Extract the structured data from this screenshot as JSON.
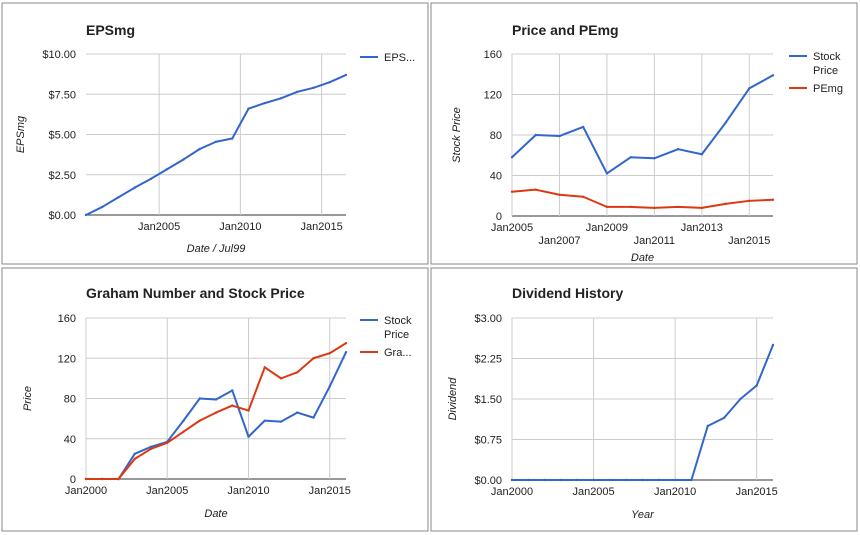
{
  "colors": {
    "stock": "#3366cc",
    "second": "#dc3912",
    "grid": "#cccccc",
    "border": "#888888",
    "text": "#222222"
  },
  "chart_data": [
    {
      "type": "line",
      "title": "EPSmg",
      "xlabel": "Date / Jul99",
      "ylabel": "EPSmg",
      "grid": true,
      "legend": "right",
      "xlim": [
        2000.5,
        2016.5
      ],
      "ylim": [
        0,
        10
      ],
      "xticks": [
        2005,
        2010,
        2015
      ],
      "xtick_labels": [
        "Jan2005",
        "Jan2010",
        "Jan2015"
      ],
      "yticks": [
        0,
        2.5,
        5,
        7.5,
        10
      ],
      "ytick_labels": [
        "$0.00",
        "$2.50",
        "$5.00",
        "$7.50",
        "$10.00"
      ],
      "x": [
        2000.5,
        2001.5,
        2002.5,
        2003.5,
        2004.5,
        2005.5,
        2006.5,
        2007.5,
        2008.5,
        2009.5,
        2010.5,
        2011.5,
        2012.5,
        2013.5,
        2014.5,
        2015.5,
        2016.5
      ],
      "series": [
        {
          "name": "EPS...",
          "color": "#3366cc",
          "values": [
            0,
            0.5,
            1.1,
            1.7,
            2.25,
            2.85,
            3.45,
            4.1,
            4.55,
            4.75,
            6.6,
            6.95,
            7.25,
            7.65,
            7.9,
            8.25,
            8.7
          ]
        }
      ]
    },
    {
      "type": "line",
      "title": "Price and PEmg",
      "xlabel": "Date",
      "ylabel": "Stock Price",
      "grid": true,
      "legend": "right",
      "xlim": [
        2005,
        2016
      ],
      "ylim": [
        0,
        160
      ],
      "xticks": [
        2005,
        2007,
        2009,
        2011,
        2013,
        2015
      ],
      "xtick_labels": [
        "Jan2005",
        "Jan2007",
        "Jan2009",
        "Jan2011",
        "Jan2013",
        "Jan2015"
      ],
      "yticks": [
        0,
        40,
        80,
        120,
        160
      ],
      "ytick_labels": [
        "0",
        "40",
        "80",
        "120",
        "160"
      ],
      "x": [
        2005,
        2006,
        2007,
        2008,
        2009,
        2010,
        2011,
        2012,
        2013,
        2014,
        2015,
        2016
      ],
      "series": [
        {
          "name": "Stock Price",
          "color": "#3366cc",
          "values": [
            58,
            80,
            79,
            88,
            42,
            58,
            57,
            66,
            61,
            92,
            126,
            139
          ]
        },
        {
          "name": "PEmg",
          "color": "#dc3912",
          "values": [
            24,
            26,
            21,
            19,
            9,
            9,
            8,
            9,
            8,
            12,
            15,
            16
          ]
        }
      ]
    },
    {
      "type": "line",
      "title": "Graham Number and Stock Price",
      "xlabel": "Date",
      "ylabel": "Price",
      "grid": true,
      "legend": "right",
      "xlim": [
        2000,
        2016
      ],
      "ylim": [
        0,
        160
      ],
      "xticks": [
        2000,
        2005,
        2010,
        2015
      ],
      "xtick_labels": [
        "Jan2000",
        "Jan2005",
        "Jan2010",
        "Jan2015"
      ],
      "yticks": [
        0,
        40,
        80,
        120,
        160
      ],
      "ytick_labels": [
        "0",
        "40",
        "80",
        "120",
        "160"
      ],
      "x": [
        2000,
        2001,
        2002,
        2003,
        2004,
        2005,
        2006,
        2007,
        2008,
        2009,
        2010,
        2011,
        2012,
        2013,
        2014,
        2015,
        2016
      ],
      "series": [
        {
          "name": "Stock Price",
          "color": "#3366cc",
          "values": [
            0,
            0,
            0,
            25,
            32,
            37,
            58,
            80,
            79,
            88,
            42,
            58,
            57,
            66,
            61,
            92,
            126
          ]
        },
        {
          "name": "Gra...",
          "color": "#dc3912",
          "values": [
            0,
            0,
            0,
            20,
            30,
            36,
            47,
            58,
            66,
            73,
            68,
            111,
            100,
            106,
            120,
            125,
            135
          ]
        }
      ]
    },
    {
      "type": "line",
      "title": "Dividend History",
      "xlabel": "Year",
      "ylabel": "Dividend",
      "grid": true,
      "legend": "none",
      "xlim": [
        2000,
        2016
      ],
      "ylim": [
        0,
        3
      ],
      "xticks": [
        2000,
        2005,
        2010,
        2015
      ],
      "xtick_labels": [
        "Jan2000",
        "Jan2005",
        "Jan2010",
        "Jan2015"
      ],
      "yticks": [
        0,
        0.75,
        1.5,
        2.25,
        3
      ],
      "ytick_labels": [
        "$0.00",
        "$0.75",
        "$1.50",
        "$2.25",
        "$3.00"
      ],
      "x": [
        2000,
        2001,
        2002,
        2003,
        2004,
        2005,
        2006,
        2007,
        2008,
        2009,
        2010,
        2011,
        2012,
        2013,
        2014,
        2015,
        2016
      ],
      "series": [
        {
          "name": "Dividend",
          "color": "#3366cc",
          "values": [
            0,
            0,
            0,
            0,
            0,
            0,
            0,
            0,
            0,
            0,
            0,
            0,
            1.0,
            1.15,
            1.5,
            1.75,
            2.5
          ]
        }
      ]
    }
  ]
}
